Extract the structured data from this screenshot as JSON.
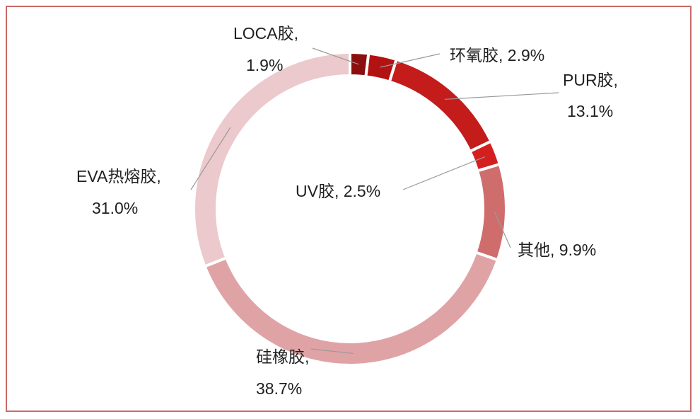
{
  "chart_data": {
    "type": "pie",
    "title": "",
    "legend": "none",
    "slices": [
      {
        "name": "LOCA胶",
        "value": 1.9,
        "label_name": "LOCA胶,",
        "label_value": "1.9%",
        "color": "#8b0f0f"
      },
      {
        "name": "环氧胶",
        "value": 2.9,
        "label_name": "环氧胶, 2.9%",
        "label_value": "",
        "color": "#b31212"
      },
      {
        "name": "PUR胶",
        "value": 13.1,
        "label_name": "PUR胶,",
        "label_value": "13.1%",
        "color": "#c41b1b"
      },
      {
        "name": "UV胶",
        "value": 2.5,
        "label_name": "UV胶, 2.5%",
        "label_value": "",
        "color": "#d41f1f"
      },
      {
        "name": "其他",
        "value": 9.9,
        "label_name": "其他, 9.9%",
        "label_value": "",
        "color": "#cf6d6d"
      },
      {
        "name": "硅橡胶",
        "value": 38.7,
        "label_name": "硅橡胶,",
        "label_value": "38.7%",
        "color": "#dfa3a6"
      },
      {
        "name": "EVA热熔胶",
        "value": 31.0,
        "label_name": "EVA热熔胶,",
        "label_value": "31.0%",
        "color": "#ecc9cc"
      }
    ]
  }
}
